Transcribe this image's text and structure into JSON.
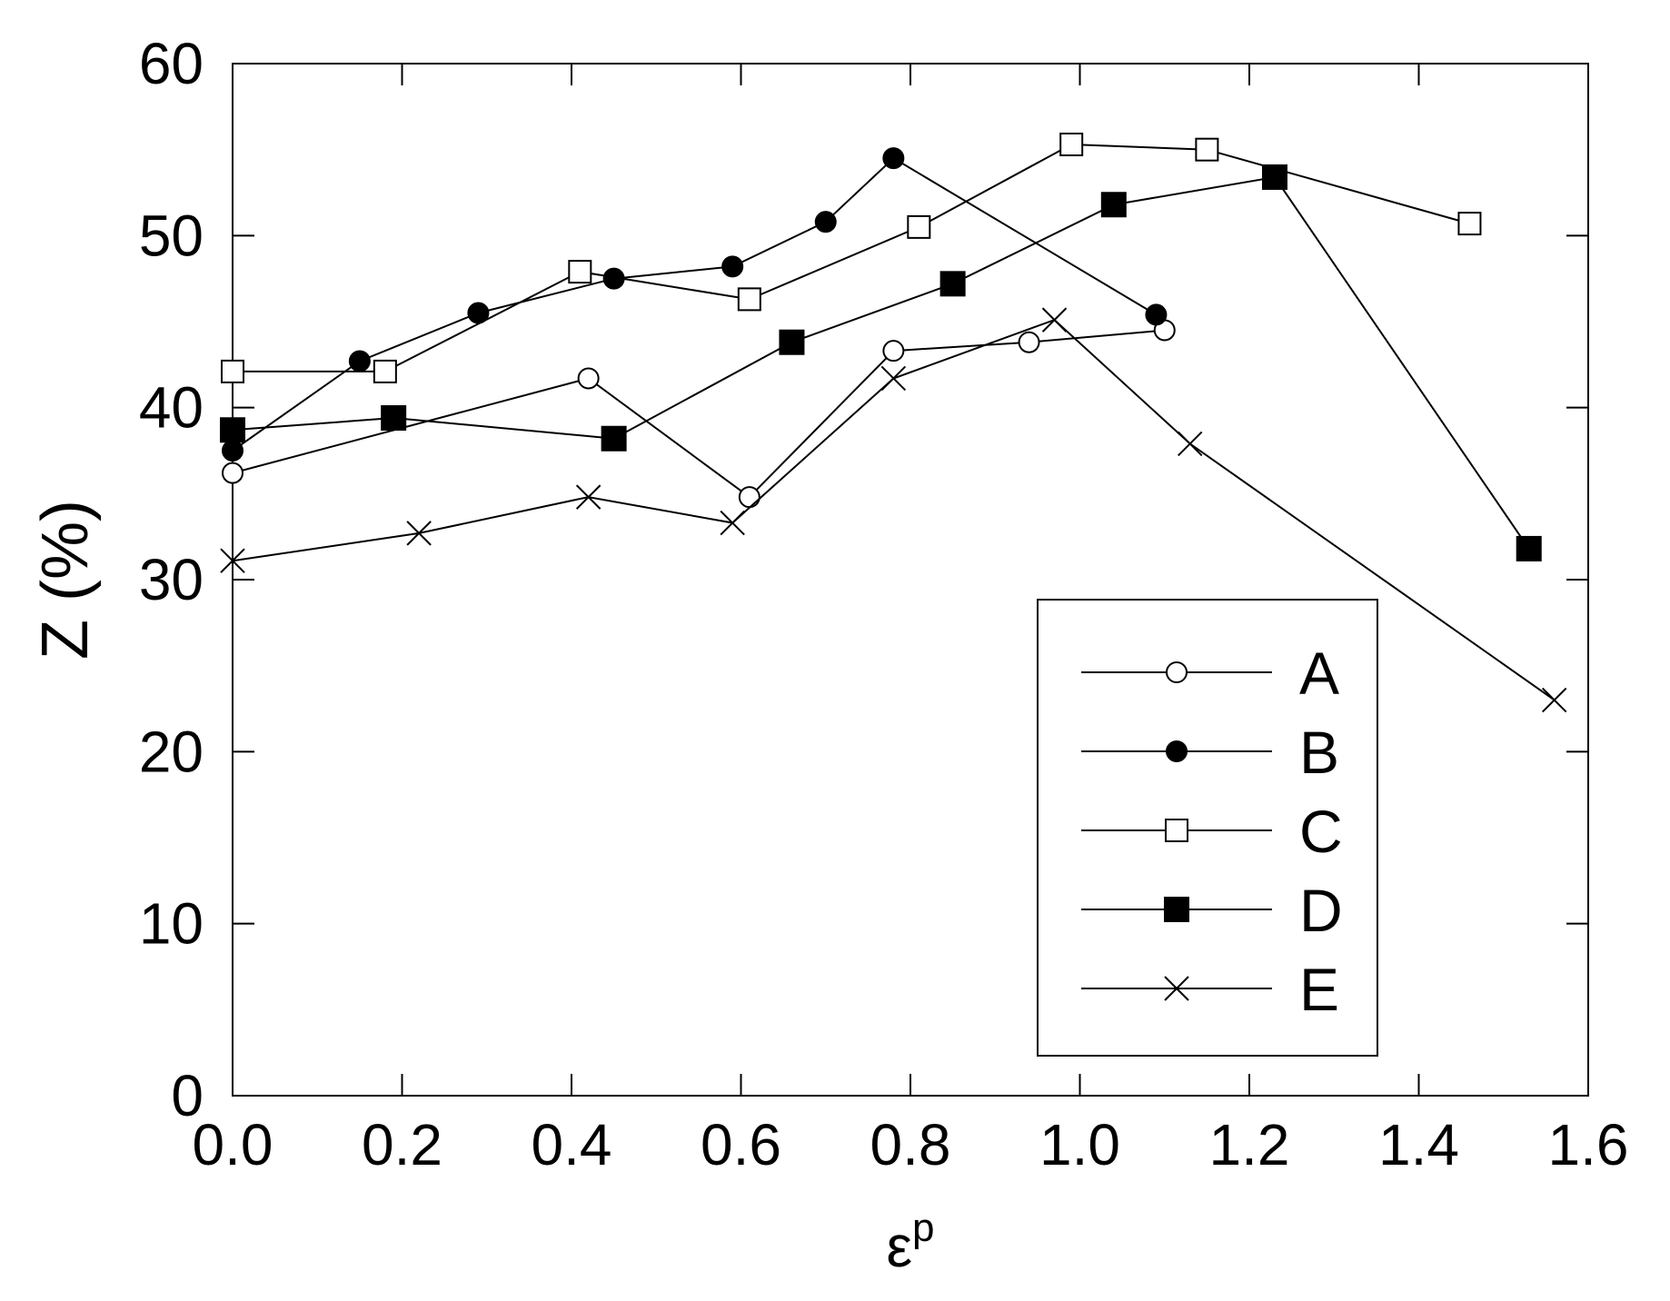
{
  "chart_data": {
    "type": "line",
    "xlabel": "ε",
    "xlabel_sup": "p",
    "ylabel": "Z (%)",
    "xlim": [
      0.0,
      1.6
    ],
    "ylim": [
      0,
      60
    ],
    "x_ticks": [
      "0.0",
      "0.2",
      "0.4",
      "0.6",
      "0.8",
      "1.0",
      "1.2",
      "1.4",
      "1.6"
    ],
    "y_ticks": [
      "0",
      "10",
      "20",
      "30",
      "40",
      "50",
      "60"
    ],
    "grid": false,
    "legend_position": "bottom-right",
    "series": [
      {
        "name": "A",
        "marker": "open-circle",
        "points": [
          [
            0.0,
            36.2
          ],
          [
            0.42,
            41.7
          ],
          [
            0.61,
            34.8
          ],
          [
            0.78,
            43.3
          ],
          [
            0.94,
            43.8
          ],
          [
            1.1,
            44.5
          ]
        ]
      },
      {
        "name": "B",
        "marker": "filled-circle",
        "points": [
          [
            0.0,
            37.5
          ],
          [
            0.15,
            42.7
          ],
          [
            0.29,
            45.5
          ],
          [
            0.45,
            47.5
          ],
          [
            0.59,
            48.2
          ],
          [
            0.7,
            50.8
          ],
          [
            0.78,
            54.5
          ],
          [
            1.09,
            45.4
          ]
        ]
      },
      {
        "name": "C",
        "marker": "open-square",
        "points": [
          [
            0.0,
            42.1
          ],
          [
            0.18,
            42.1
          ],
          [
            0.41,
            47.9
          ],
          [
            0.61,
            46.3
          ],
          [
            0.81,
            50.5
          ],
          [
            0.99,
            55.3
          ],
          [
            1.15,
            55.0
          ],
          [
            1.46,
            50.7
          ]
        ]
      },
      {
        "name": "D",
        "marker": "filled-square",
        "points": [
          [
            0.0,
            38.7
          ],
          [
            0.19,
            39.4
          ],
          [
            0.45,
            38.2
          ],
          [
            0.66,
            43.8
          ],
          [
            0.85,
            47.2
          ],
          [
            1.04,
            51.8
          ],
          [
            1.23,
            53.4
          ],
          [
            1.53,
            31.8
          ]
        ]
      },
      {
        "name": "E",
        "marker": "cross",
        "points": [
          [
            0.0,
            31.1
          ],
          [
            0.22,
            32.7
          ],
          [
            0.42,
            34.8
          ],
          [
            0.59,
            33.3
          ],
          [
            0.78,
            41.7
          ],
          [
            0.97,
            45.1
          ],
          [
            1.13,
            37.9
          ],
          [
            1.56,
            23.0
          ]
        ]
      }
    ]
  }
}
